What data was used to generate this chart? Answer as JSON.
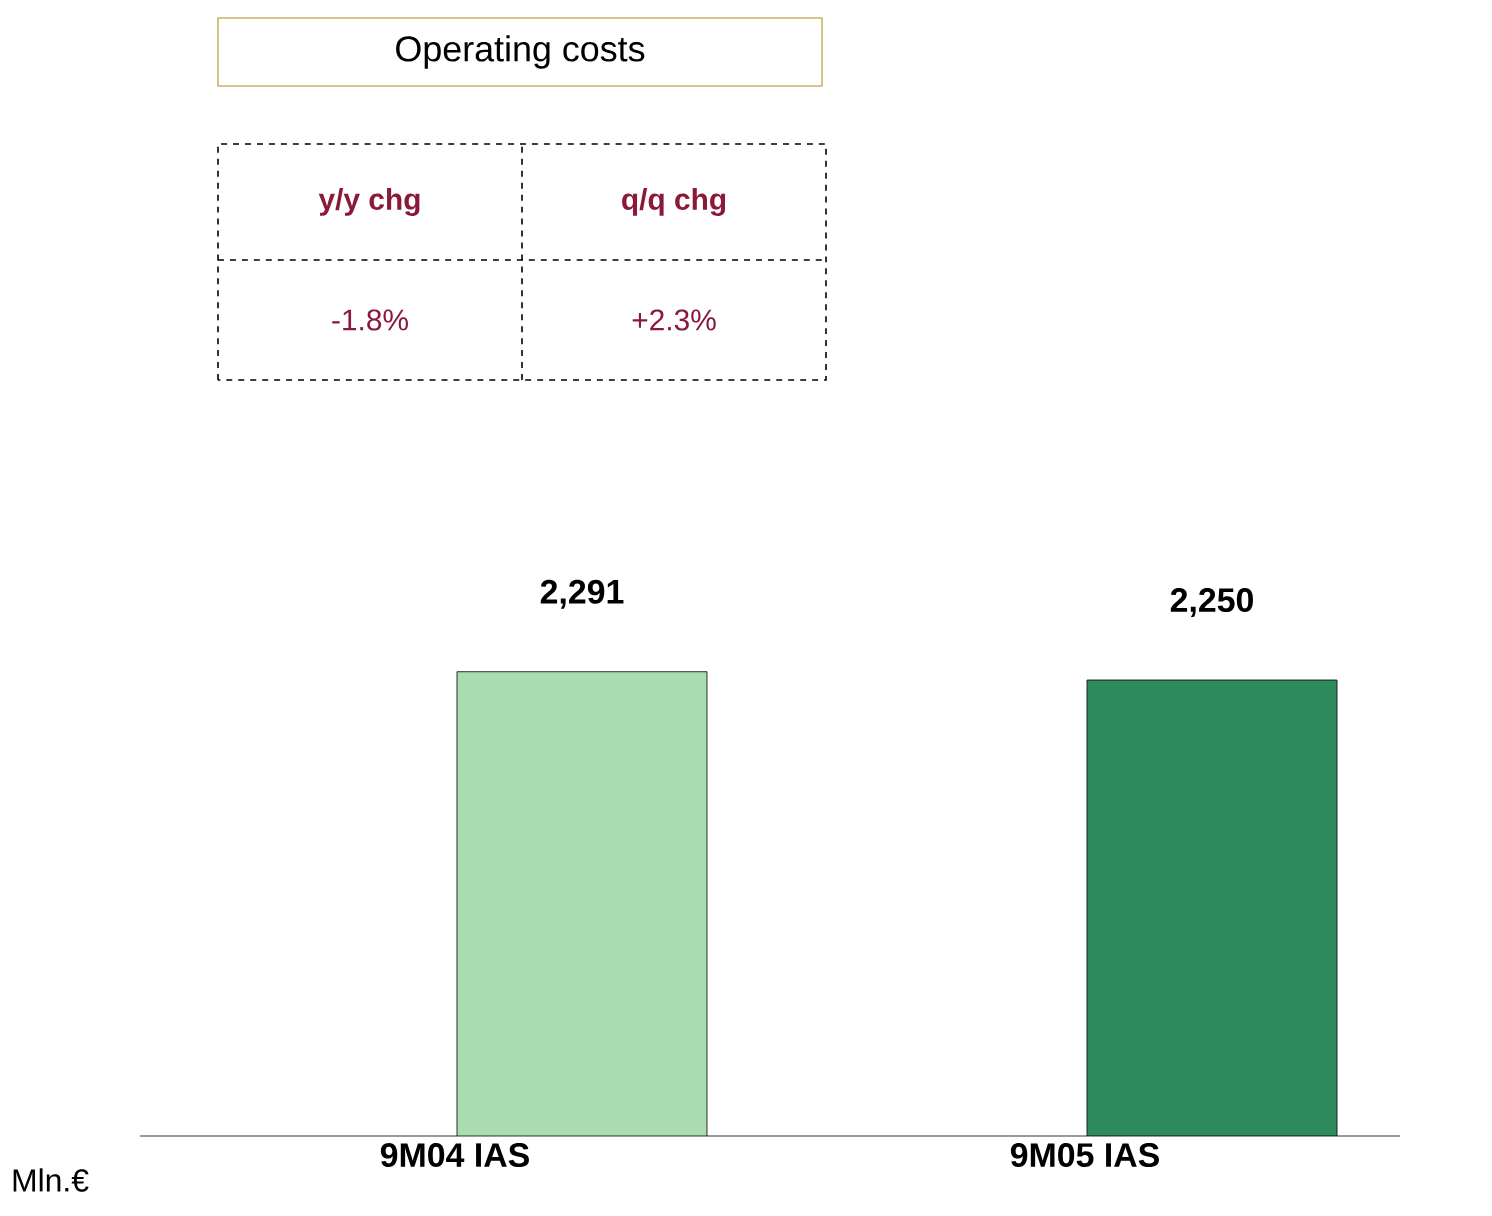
{
  "chart_data": {
    "type": "bar",
    "title": "Operating costs",
    "categories": [
      "9M04 IAS",
      "9M05 IAS"
    ],
    "values": [
      2291,
      2250
    ],
    "colors": [
      "#a9dcae",
      "#2e8b5e"
    ],
    "value_labels": [
      "2,291",
      "2,250"
    ],
    "ylabel": "Mln.€",
    "tick_labels": "x",
    "annotations": [
      "y/y chg",
      "q/q chg",
      "-1.8%",
      "+2.3%"
    ]
  }
}
